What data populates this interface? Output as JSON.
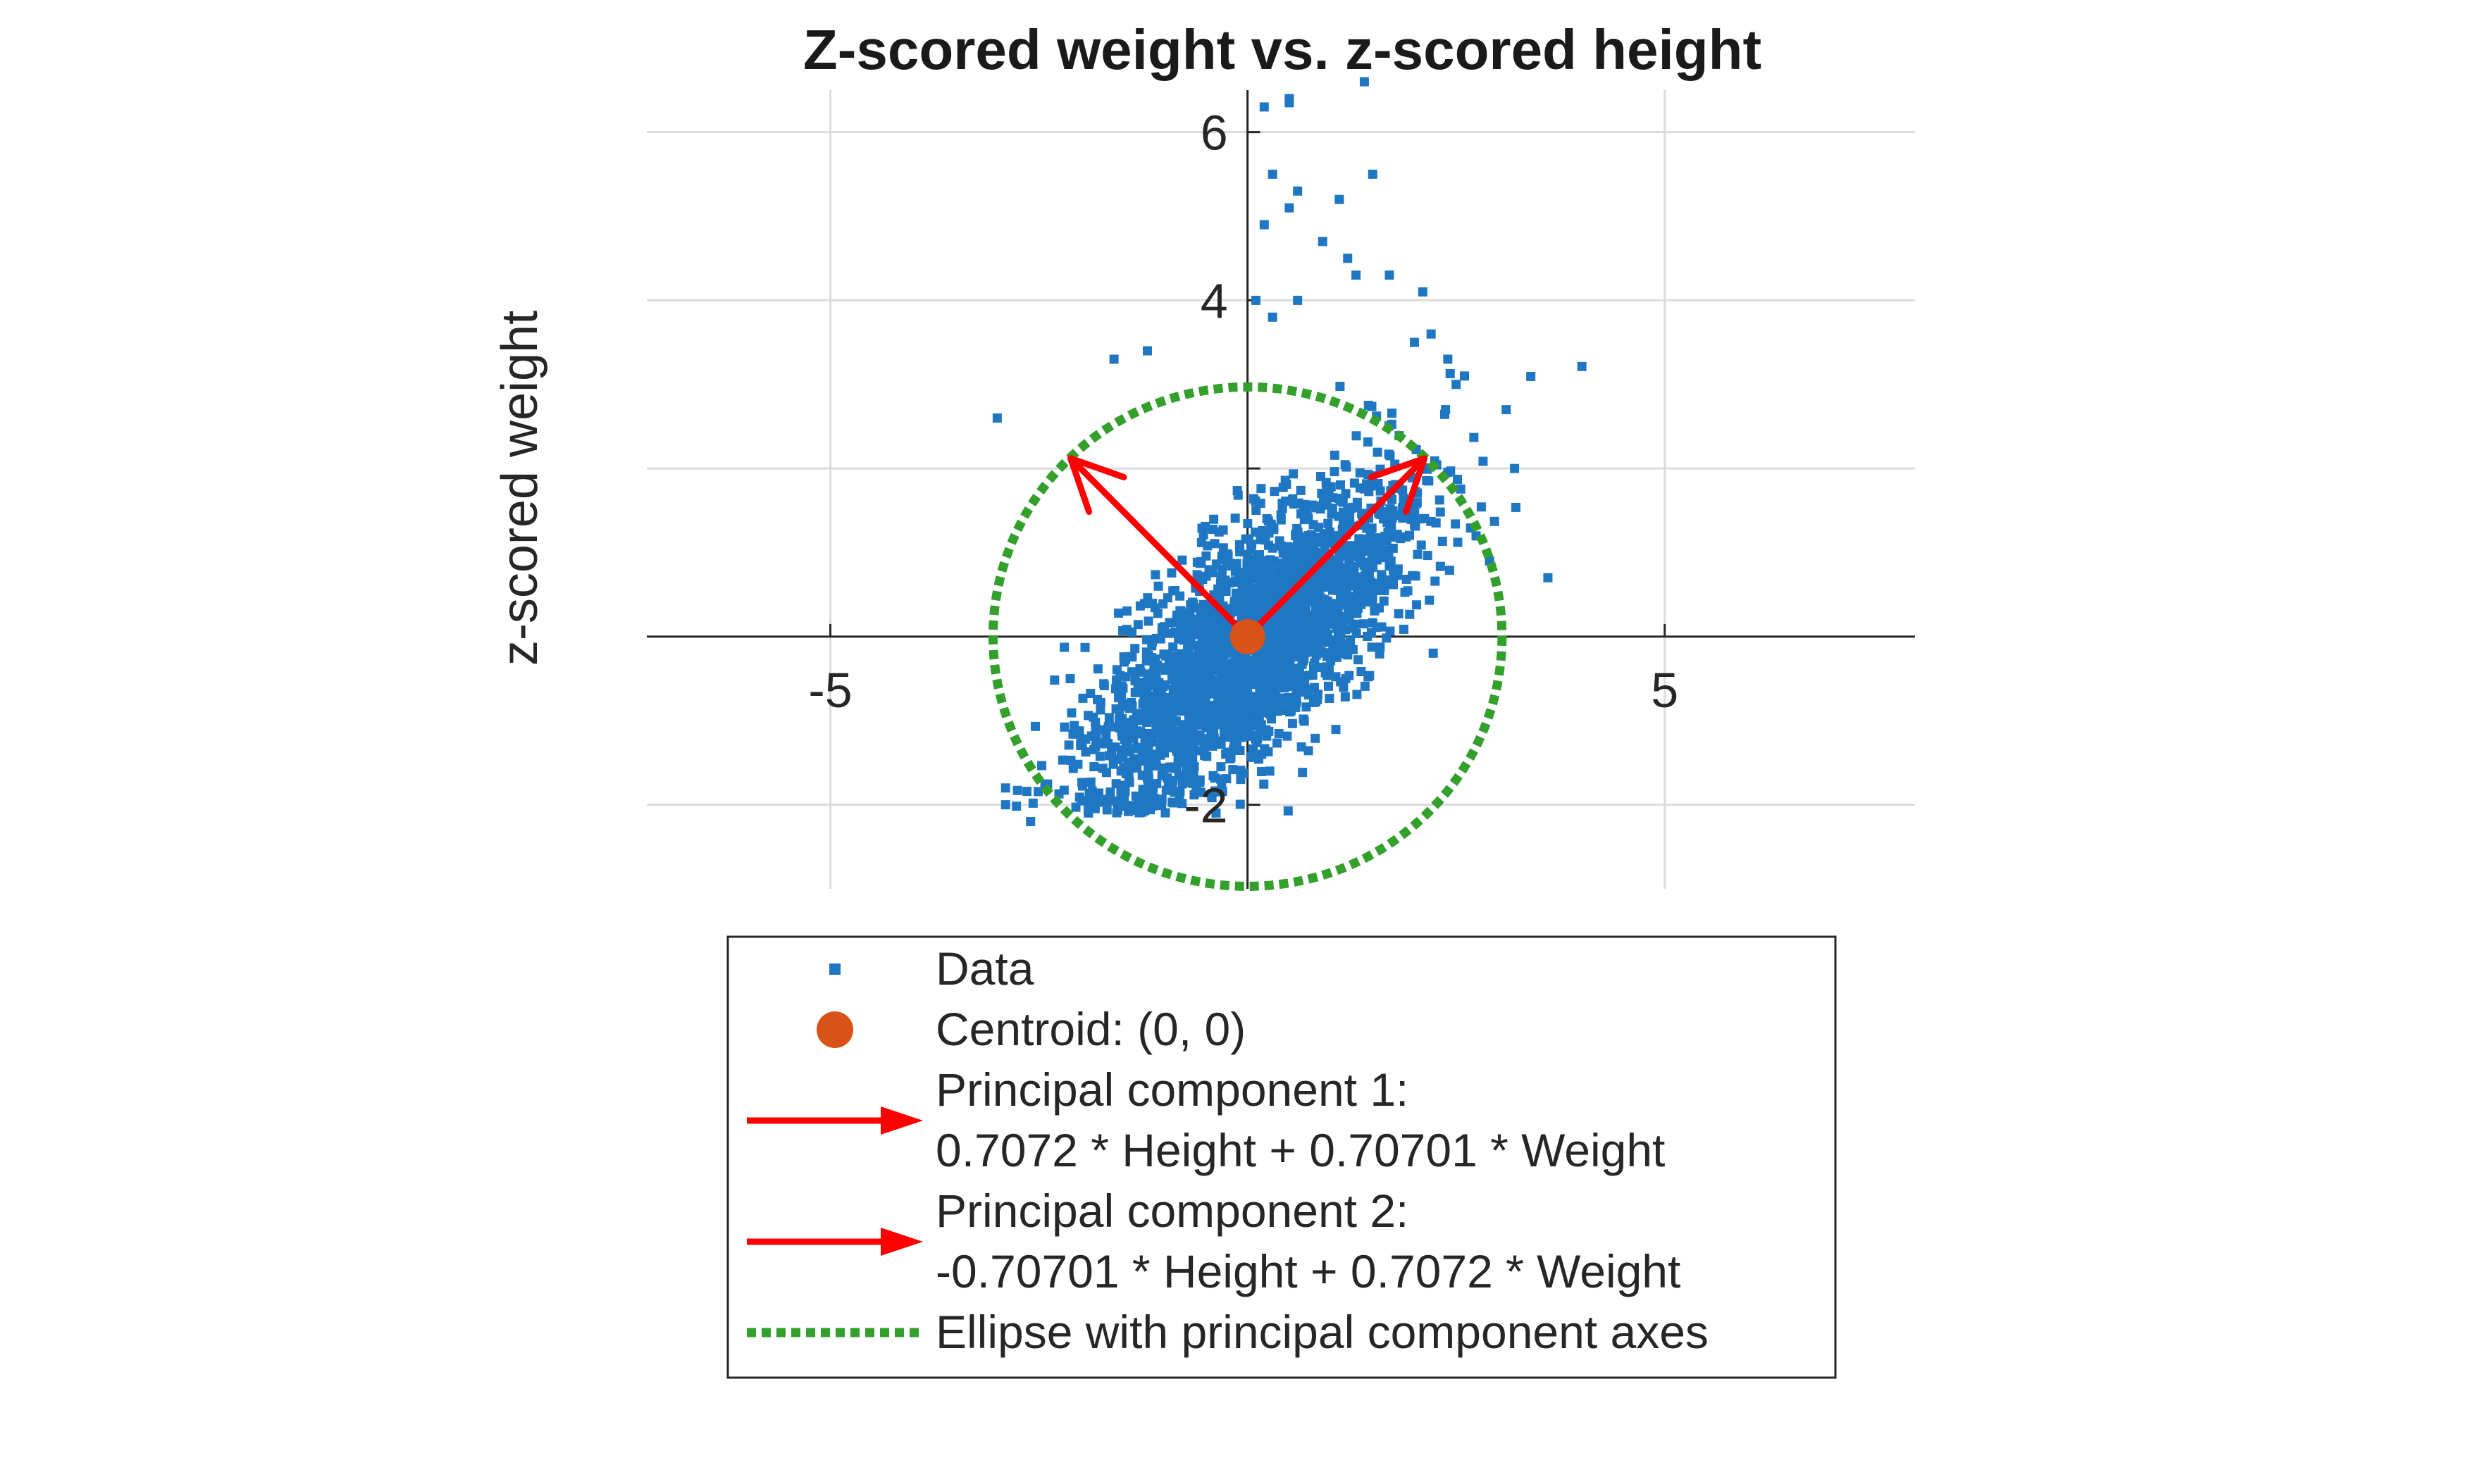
{
  "chart_data": {
    "type": "scatter",
    "title": "Z-scored weight vs. z-scored height",
    "xlabel": "",
    "ylabel": "z-scored weight",
    "xlim": [
      -7.2,
      8.0
    ],
    "ylim": [
      -3.0,
      6.5
    ],
    "xticks": [
      -5,
      5
    ],
    "xtick_labels": [
      "-5",
      "5"
    ],
    "yticks": [
      -2,
      4,
      6
    ],
    "ytick_labels": [
      "-2",
      "4",
      "6"
    ],
    "grid_x": [
      -5,
      5
    ],
    "grid_y": [
      -2,
      2,
      4,
      6
    ],
    "grid": true,
    "axis_location": "origin",
    "colors": {
      "data": "#1f77c4",
      "centroid": "#d95319",
      "pc_arrow": "#ff0000",
      "ellipse": "#33a02c",
      "grid": "#dcdcdc",
      "axis": "#262626"
    },
    "centroid": {
      "x": 0,
      "y": 0
    },
    "principal_components": [
      {
        "name": "Principal component 1",
        "dx": 2.12,
        "dy": 2.12
      },
      {
        "name": "Principal component 2",
        "dx": -2.12,
        "dy": 2.12
      }
    ],
    "ellipse": {
      "cx": 0,
      "cy": 0,
      "rx": 3.05,
      "ry": 2.97
    },
    "outliers": [
      [
        0.2,
        6.3
      ],
      [
        0.5,
        6.4
      ],
      [
        0.5,
        6.35
      ],
      [
        1.4,
        6.6
      ],
      [
        1.5,
        5.5
      ],
      [
        0.3,
        5.5
      ],
      [
        0.6,
        5.3
      ],
      [
        0.5,
        5.1
      ],
      [
        1.1,
        5.2
      ],
      [
        0.2,
        4.9
      ],
      [
        0.9,
        4.7
      ],
      [
        1.2,
        4.5
      ],
      [
        1.7,
        4.3
      ],
      [
        2.1,
        4.1
      ],
      [
        0.6,
        4.0
      ],
      [
        0.1,
        4.0
      ],
      [
        0.3,
        3.8
      ],
      [
        1.3,
        4.3
      ],
      [
        -3.0,
        2.6
      ],
      [
        -1.6,
        3.3
      ],
      [
        -1.2,
        3.4
      ],
      [
        2.2,
        3.6
      ],
      [
        2.5,
        3.0
      ],
      [
        3.1,
        2.7
      ],
      [
        3.2,
        2.0
      ],
      [
        3.6,
        0.7
      ],
      [
        2.9,
        0.9
      ],
      [
        2.6,
        3.1
      ],
      [
        -2.9,
        -1.8
      ],
      [
        -2.6,
        -2.2
      ],
      [
        -2.9,
        -2.0
      ],
      [
        2.0,
        3.5
      ],
      [
        2.4,
        3.3
      ]
    ],
    "cloud": {
      "n": 2600,
      "pc1_std": 1.2,
      "pc2_std": 0.5,
      "seed": 7
    },
    "legend": {
      "placement": "below",
      "entries": [
        {
          "label_lines": [
            "Data"
          ]
        },
        {
          "label_lines": [
            "Centroid: (0, 0)"
          ]
        },
        {
          "label_lines": [
            "Principal component 1:",
            "0.7072 * Height + 0.70701 * Weight"
          ]
        },
        {
          "label_lines": [
            "Principal component 2:",
            "-0.70701 * Height  + 0.7072 * Weight"
          ]
        },
        {
          "label_lines": [
            "Ellipse with principal component axes"
          ]
        }
      ]
    }
  }
}
